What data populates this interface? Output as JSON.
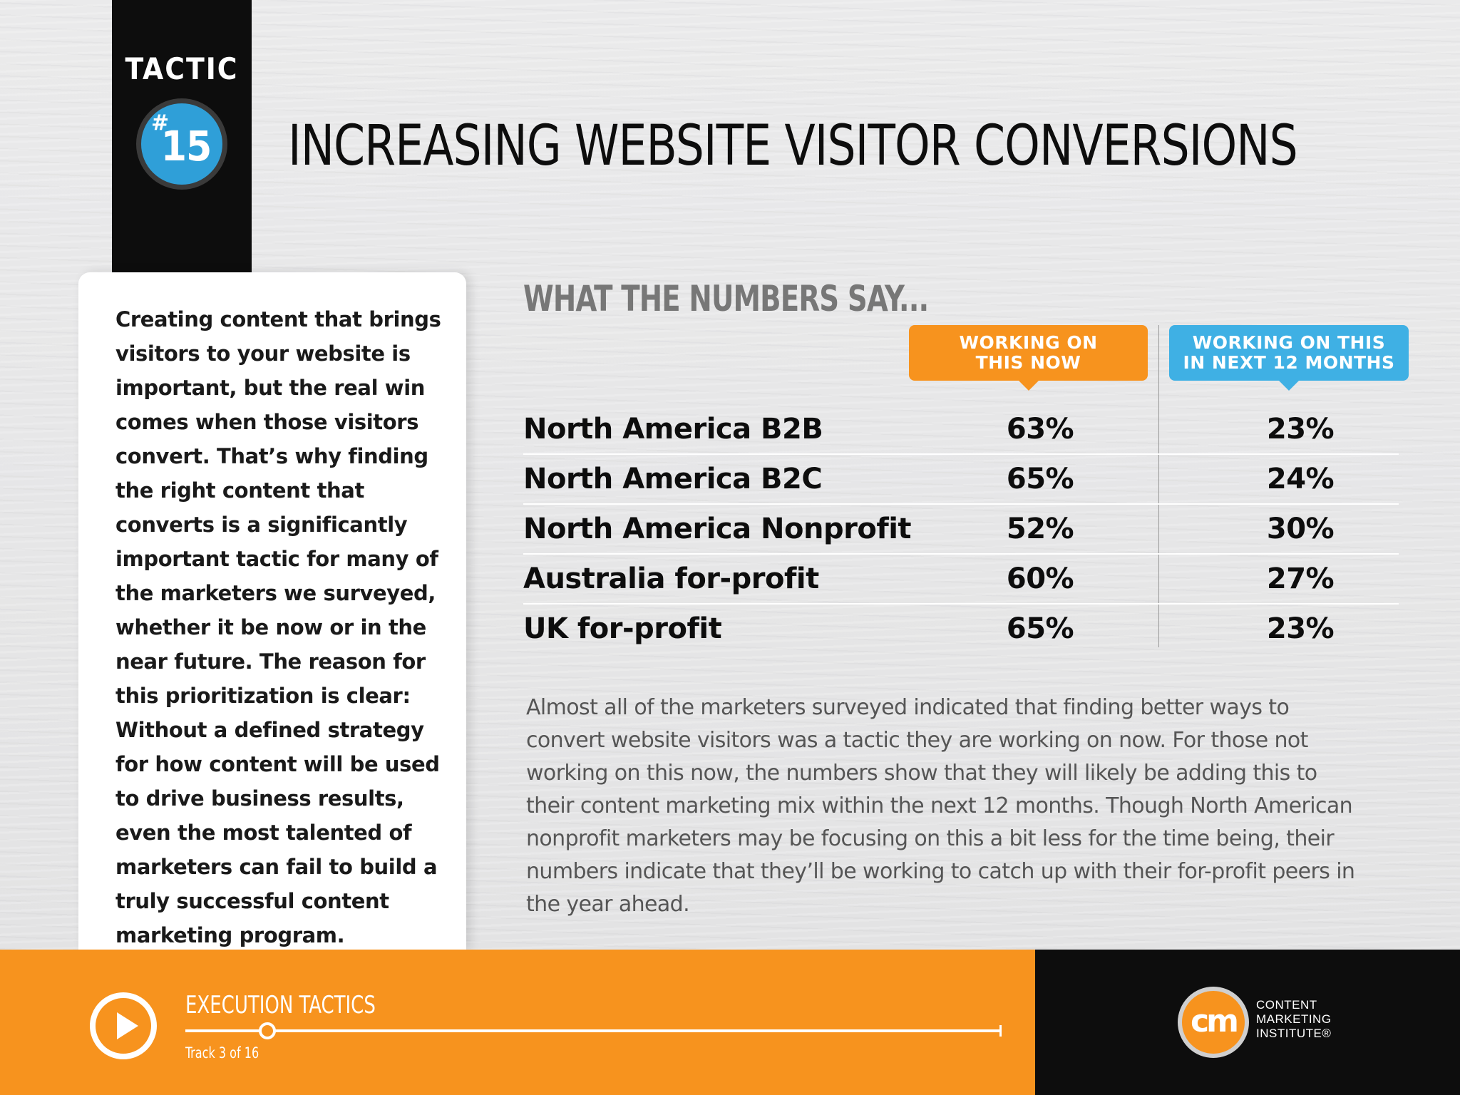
{
  "tactic": {
    "label": "TACTIC",
    "hash": "#",
    "number": "15"
  },
  "page_title": "INCREASING WEBSITE VISITOR CONVERSIONS",
  "intro_text": "Creating content that brings visitors to your website is important, but the real win comes when those visitors convert. That’s why finding the right content that converts is a significantly important tactic for many of the marketers we surveyed, whether it be now or in the near future. The reason for this prioritization is clear: Without a defined strategy for how content will be used to drive business results, even the most talented of marketers can fail to build a truly successful content marketing program.",
  "numbers": {
    "heading": "WHAT THE NUMBERS SAY...",
    "col_now": "WORKING ON\nTHIS NOW",
    "col_next": "WORKING ON THIS\nIN NEXT 12 MONTHS",
    "rows": [
      {
        "region": "North America B2B",
        "now": "63%",
        "next": "23%"
      },
      {
        "region": "North America B2C",
        "now": "65%",
        "next": "24%"
      },
      {
        "region": "North America Nonprofit",
        "now": "52%",
        "next": "30%"
      },
      {
        "region": "Australia for-profit",
        "now": "60%",
        "next": "27%"
      },
      {
        "region": "UK for-profit",
        "now": "65%",
        "next": "23%"
      }
    ]
  },
  "summary": "Almost all of the marketers surveyed indicated that finding better ways to convert website visitors was a tactic they are working on now. For those not working on this now, the numbers show that they will likely be adding this to their content marketing mix within the next 12 months. Though North American nonprofit marketers may be focusing on this a bit less for the time being, their numbers indicate that they’ll be working to catch up with their for-profit peers in the year ahead.",
  "footer": {
    "title": "EXECUTION TACTICS",
    "track_label": "Track 3 of 16",
    "track_progress": 0.1,
    "play_icon": "play-icon",
    "logo_mark": "cm",
    "logo_name": "CONTENT\nMARKETING\nINSTITUTE®"
  },
  "colors": {
    "orange": "#f7931e",
    "blue": "#3fb0e4",
    "black": "#0d0d0d"
  }
}
